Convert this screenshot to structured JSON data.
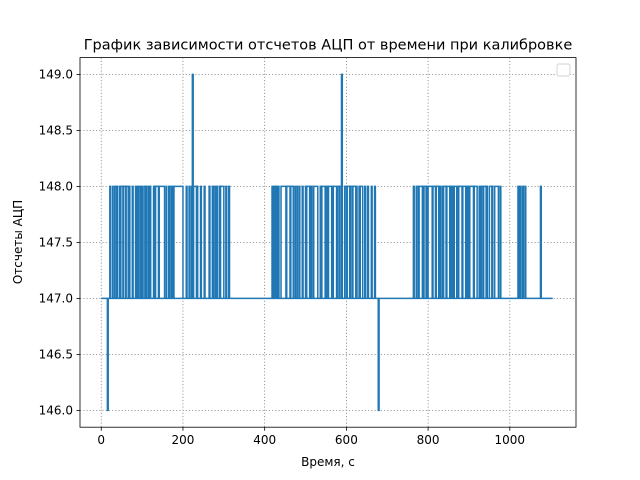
{
  "chart_data": {
    "type": "line",
    "title": "График зависимости отсчетов АЦП от времени при калибровке",
    "xlabel": "Время, с",
    "ylabel": "Отсчеты АЦП",
    "xlim": [
      -52,
      1162
    ],
    "ylim": [
      145.85,
      149.15
    ],
    "xticks": [
      0,
      200,
      400,
      600,
      800,
      1000
    ],
    "yticks": [
      146.0,
      146.5,
      147.0,
      147.5,
      148.0,
      148.5,
      149.0
    ],
    "xtick_labels": [
      "0",
      "200",
      "400",
      "600",
      "800",
      "1000"
    ],
    "ytick_labels": [
      "146.0",
      "146.5",
      "147.0",
      "147.5",
      "148.0",
      "148.5",
      "149.0"
    ],
    "grid": true,
    "legend": "upper-right, empty",
    "line_color": "#1f77b4",
    "series": [
      {
        "baseline": 147,
        "x_range": [
          0,
          1105
        ],
        "spikes_to_146": [
          16,
          679
        ],
        "spikes_to_149": [
          224,
          589
        ],
        "high_ranges_148": [
          [
            33,
            40
          ],
          [
            48,
            66
          ],
          [
            92,
            96
          ],
          [
            105,
            112
          ],
          [
            116,
            121
          ],
          [
            128,
            155
          ],
          [
            168,
            172
          ],
          [
            178,
            200
          ],
          [
            226,
            236
          ],
          [
            276,
            280
          ],
          [
            290,
            300
          ],
          [
            423,
            430
          ],
          [
            440,
            470
          ],
          [
            476,
            480
          ],
          [
            503,
            514
          ],
          [
            520,
            530
          ],
          [
            540,
            548
          ],
          [
            556,
            564
          ],
          [
            568,
            576
          ],
          [
            578,
            590
          ],
          [
            596,
            626
          ],
          [
            634,
            640
          ],
          [
            771,
            775
          ],
          [
            778,
            786
          ],
          [
            790,
            795
          ],
          [
            800,
            830
          ],
          [
            838,
            858
          ],
          [
            864,
            870
          ],
          [
            874,
            897
          ],
          [
            902,
            920
          ],
          [
            930,
            945
          ],
          [
            950,
            958
          ],
          [
            963,
            972
          ],
          [
            1020,
            1023
          ],
          [
            1030,
            1033
          ]
        ],
        "high_spikes_148": [
          [
            21,
            22
          ],
          [
            27,
            29
          ],
          [
            37,
            38
          ],
          [
            45,
            46
          ],
          [
            53,
            55
          ],
          [
            60,
            61
          ],
          [
            67,
            70
          ],
          [
            76,
            78
          ],
          [
            84,
            86
          ],
          [
            89,
            91
          ],
          [
            99,
            101
          ],
          [
            109,
            110
          ],
          [
            118,
            120
          ],
          [
            131,
            133
          ],
          [
            140,
            142
          ],
          [
            159,
            160
          ],
          [
            165,
            166
          ],
          [
            175,
            177
          ],
          [
            208,
            210
          ],
          [
            215,
            217
          ],
          [
            221,
            223
          ],
          [
            233,
            235
          ],
          [
            243,
            245
          ],
          [
            252,
            254
          ],
          [
            264,
            266
          ],
          [
            272,
            274
          ],
          [
            283,
            285
          ],
          [
            290,
            292
          ],
          [
            305,
            307
          ],
          [
            312,
            314
          ],
          [
            418,
            420
          ],
          [
            426,
            428
          ],
          [
            433,
            435
          ],
          [
            452,
            454
          ],
          [
            462,
            464
          ],
          [
            470,
            472
          ],
          [
            484,
            486
          ],
          [
            492,
            494
          ],
          [
            500,
            502
          ],
          [
            510,
            512
          ],
          [
            518,
            520
          ],
          [
            536,
            538
          ],
          [
            549,
            551
          ],
          [
            554,
            556
          ],
          [
            565,
            567
          ],
          [
            582,
            584
          ],
          [
            600,
            602
          ],
          [
            608,
            610
          ],
          [
            614,
            616
          ],
          [
            623,
            625
          ],
          [
            631,
            633
          ],
          [
            645,
            647
          ],
          [
            652,
            654
          ],
          [
            661,
            663
          ],
          [
            669,
            671
          ],
          [
            764,
            766
          ],
          [
            787,
            789
          ],
          [
            797,
            799
          ],
          [
            810,
            812
          ],
          [
            818,
            820
          ],
          [
            826,
            828
          ],
          [
            834,
            836
          ],
          [
            844,
            846
          ],
          [
            853,
            855
          ],
          [
            861,
            863
          ],
          [
            873,
            875
          ],
          [
            883,
            885
          ],
          [
            892,
            894
          ],
          [
            900,
            902
          ],
          [
            911,
            913
          ],
          [
            925,
            927
          ],
          [
            934,
            936
          ],
          [
            942,
            944
          ],
          [
            956,
            958
          ],
          [
            976,
            978
          ],
          [
            1024,
            1026
          ],
          [
            1037,
            1039
          ],
          [
            1075,
            1077
          ]
        ]
      }
    ]
  }
}
